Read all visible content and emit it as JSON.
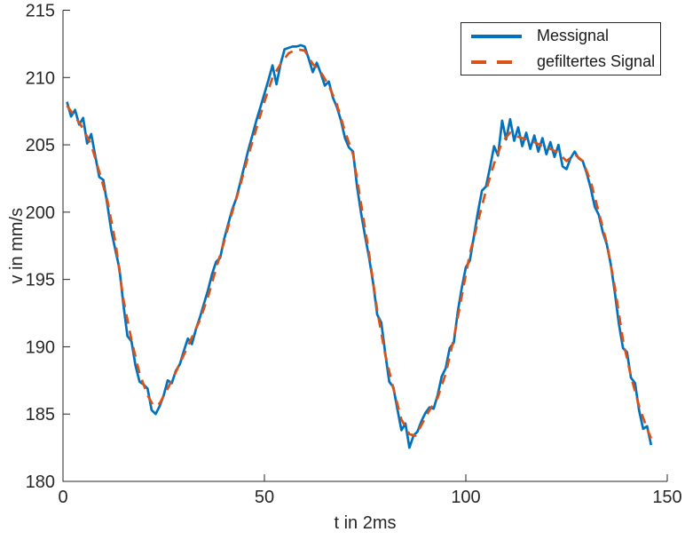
{
  "figure": {
    "background": "#ffffff",
    "axis_color": "#262626",
    "box": "off",
    "tick_dir": "in"
  },
  "legend": {
    "position": "top-right-inside",
    "border_color": "#262626",
    "background": "#ffffff",
    "entries": [
      {
        "label": "Messignal",
        "color": "#0072BD",
        "line_style": "solid"
      },
      {
        "label": "gefiltertes Signal",
        "color": "#D95319",
        "line_style": "dashed"
      }
    ]
  },
  "chart_data": {
    "type": "line",
    "title": "",
    "xlabel": "t in 2ms",
    "ylabel": "v in mm/s",
    "xlim": [
      0,
      150
    ],
    "ylim": [
      180,
      215
    ],
    "xticks": [
      0,
      50,
      100,
      150
    ],
    "yticks": [
      180,
      185,
      190,
      195,
      200,
      205,
      210,
      215
    ],
    "grid": false,
    "legend_position": "top-right inside plot, boxed",
    "series": [
      {
        "name": "Messignal",
        "color": "#0072BD",
        "line_style": "solid",
        "line_width": 2.7,
        "x_start": 1,
        "x_step": 1,
        "y": [
          208.2,
          207.1,
          207.6,
          206.5,
          207.0,
          205.1,
          205.8,
          204.2,
          202.6,
          202.4,
          200.6,
          198.6,
          197.2,
          195.8,
          193.1,
          190.8,
          190.4,
          188.6,
          187.4,
          187.2,
          186.9,
          185.3,
          185.0,
          185.6,
          186.4,
          187.5,
          187.3,
          188.2,
          188.7,
          189.7,
          190.6,
          190.2,
          191.3,
          192.2,
          193.2,
          194.2,
          195.4,
          196.3,
          196.6,
          198.0,
          199.1,
          200.2,
          201.0,
          202.2,
          203.4,
          204.6,
          205.7,
          206.8,
          207.8,
          208.8,
          209.8,
          210.9,
          209.5,
          211.0,
          212.1,
          212.2,
          212.3,
          212.3,
          212.4,
          212.3,
          211.4,
          210.4,
          211.1,
          210.3,
          209.4,
          209.7,
          208.5,
          207.8,
          206.8,
          205.5,
          204.8,
          204.5,
          201.9,
          199.9,
          198.2,
          196.6,
          194.7,
          192.4,
          191.8,
          189.5,
          187.4,
          187.0,
          185.4,
          183.8,
          184.3,
          182.5,
          183.4,
          183.7,
          184.5,
          185.1,
          185.5,
          185.4,
          186.4,
          187.8,
          188.4,
          189.9,
          190.3,
          192.6,
          194.4,
          195.9,
          196.4,
          198.2,
          200.0,
          201.6,
          201.9,
          203.3,
          204.9,
          204.2,
          206.8,
          205.4,
          206.9,
          205.3,
          206.3,
          204.9,
          205.9,
          204.7,
          205.7,
          204.5,
          205.5,
          204.3,
          205.2,
          204.1,
          205.0,
          203.4,
          203.2,
          204.0,
          204.5,
          204.0,
          203.8,
          202.9,
          201.8,
          200.4,
          199.8,
          198.5,
          197.6,
          196.1,
          194.0,
          191.7,
          189.9,
          189.6,
          187.7,
          187.3,
          185.3,
          183.9,
          184.1,
          182.7
        ]
      },
      {
        "name": "gefiltertes Signal",
        "color": "#D95319",
        "line_style": "dashed",
        "line_width": 2.7,
        "x": [
          1,
          3,
          5,
          7,
          9,
          11,
          13,
          15,
          17,
          19,
          21,
          22.5,
          24,
          26,
          28,
          30,
          32,
          34,
          36,
          38,
          40,
          42,
          44,
          46,
          48,
          50,
          52,
          54,
          56,
          58,
          60,
          62,
          64,
          66,
          68,
          70,
          72,
          74,
          76,
          78,
          80,
          82,
          84,
          86,
          87.5,
          89,
          91,
          93,
          95,
          97,
          99,
          101,
          103,
          105,
          107,
          109,
          111,
          113,
          115,
          117,
          119,
          121,
          123,
          125,
          127,
          129,
          131,
          133,
          135,
          137,
          139,
          141,
          143,
          145,
          146
        ],
        "y": [
          207.9,
          207.1,
          206.2,
          205.0,
          203.0,
          200.9,
          197.8,
          193.5,
          190.5,
          188.0,
          186.4,
          185.6,
          185.8,
          186.9,
          188.1,
          189.4,
          190.7,
          192.0,
          193.7,
          195.8,
          197.8,
          200.0,
          202.0,
          204.2,
          206.2,
          208.2,
          210.0,
          211.0,
          211.8,
          212.1,
          212.0,
          211.0,
          210.4,
          209.4,
          208.0,
          206.0,
          204.3,
          200.6,
          196.9,
          192.7,
          189.4,
          186.9,
          184.6,
          183.5,
          183.4,
          184.2,
          185.3,
          186.2,
          188.0,
          190.6,
          193.8,
          196.9,
          199.3,
          201.6,
          203.6,
          205.2,
          205.9,
          205.6,
          205.4,
          205.2,
          204.9,
          204.7,
          204.4,
          203.8,
          204.3,
          203.8,
          202.3,
          200.0,
          197.7,
          194.4,
          190.5,
          187.8,
          185.6,
          183.9,
          183.2
        ]
      }
    ]
  }
}
